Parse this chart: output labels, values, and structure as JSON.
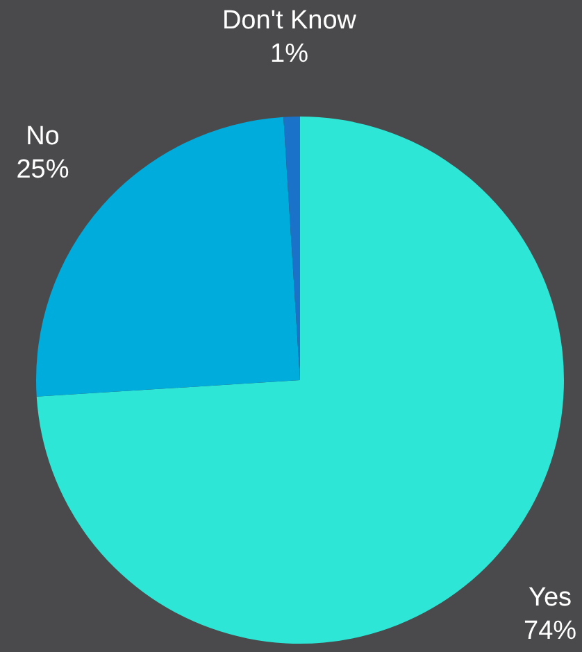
{
  "chart_data": {
    "type": "pie",
    "categories": [
      "Yes",
      "No",
      "Don't Know"
    ],
    "values": [
      74,
      25,
      1
    ],
    "colors": [
      "#2ee6d6",
      "#00acdc",
      "#1a73c8"
    ],
    "value_labels": [
      "74%",
      "25%",
      "1%"
    ],
    "legend": false
  }
}
